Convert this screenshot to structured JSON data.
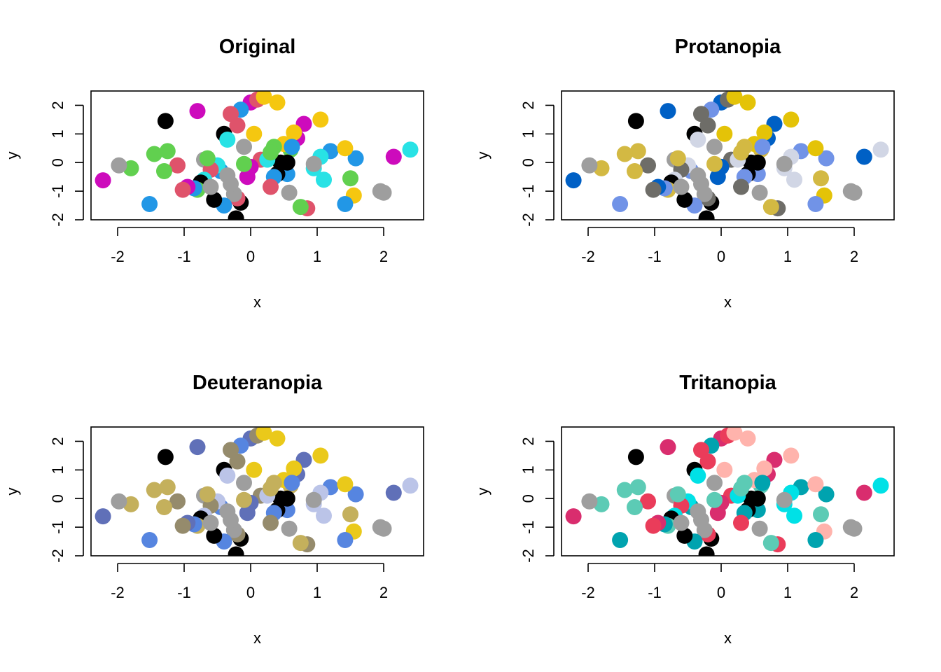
{
  "figure": {
    "background": "#ffffff",
    "layout": "2x2 grid"
  },
  "chart_data": [
    {
      "type": "scatter",
      "title": "Original",
      "xlabel": "x",
      "ylabel": "y",
      "xlim": [
        -2.4,
        2.6
      ],
      "ylim": [
        -2.0,
        2.5
      ],
      "xticks": [
        -2,
        -1,
        0,
        1,
        2
      ],
      "yticks": [
        -2,
        -1,
        0,
        1,
        2
      ],
      "xtick_labels": [
        "-2",
        "-1",
        "0",
        "1",
        "2"
      ],
      "ytick_labels": [
        "-2",
        "-1",
        "0",
        "1",
        "2"
      ],
      "grid": false,
      "marker": "filled circle",
      "palette": [
        "#000000",
        "#df536b",
        "#61d04f",
        "#2297e6",
        "#28e2e5",
        "#cd0bbc",
        "#f5c710",
        "#9e9e9e"
      ],
      "x": [
        -1.28,
        -0.8,
        -0.7,
        -0.4,
        0.0,
        -0.15,
        0.1,
        0.2,
        0.4,
        -0.3,
        -0.2,
        0.05,
        0.8,
        1.05,
        2.4,
        2.15,
        1.58,
        1.55,
        1.42,
        1.5,
        1.2,
        1.05,
        1.1,
        0.95,
        0.85,
        0.75,
        0.7,
        0.65,
        0.6,
        0.55,
        0.5,
        0.45,
        0.4,
        0.35,
        0.35,
        0.3,
        0.15,
        0.0,
        -0.05,
        -0.1,
        -0.15,
        -0.2,
        -0.25,
        -0.3,
        -0.35,
        -0.4,
        -0.45,
        -0.5,
        -0.55,
        -0.6,
        -0.65,
        -0.7,
        -0.75,
        -0.8,
        -0.85,
        -0.95,
        -1.02,
        -1.1,
        -1.25,
        -1.3,
        -1.45,
        -1.52,
        -1.8,
        -1.98,
        -2.22,
        2.0,
        1.95,
        0.58,
        0.25,
        0.95,
        0.3,
        -0.22,
        1.42,
        0.55,
        -0.35,
        -0.1,
        -0.6,
        0.62
      ],
      "y": [
        1.45,
        1.8,
        0.1,
        1.0,
        2.1,
        1.85,
        2.2,
        2.3,
        2.1,
        1.7,
        1.3,
        1.0,
        1.35,
        1.5,
        0.45,
        0.2,
        0.15,
        -1.15,
        -1.45,
        -0.55,
        0.4,
        0.2,
        -0.6,
        -0.2,
        -1.6,
        -1.55,
        0.85,
        1.05,
        0.45,
        -0.4,
        0.65,
        0.0,
        -0.4,
        0.55,
        -0.5,
        -0.85,
        0.1,
        -0.15,
        -0.5,
        -0.05,
        -1.4,
        -1.25,
        -1.1,
        -0.75,
        0.8,
        -1.5,
        -0.3,
        -0.1,
        -1.3,
        -0.25,
        0.15,
        -0.6,
        -0.7,
        -0.95,
        -0.9,
        -0.85,
        -0.95,
        -0.1,
        0.4,
        -0.3,
        0.3,
        -1.45,
        -0.2,
        -0.1,
        -0.62,
        -1.05,
        -1.0,
        -1.05,
        0.1,
        -0.05,
        0.35,
        -1.95,
        0.5,
        0.0,
        -0.45,
        0.55,
        -0.85,
        0.55
      ],
      "colors": [
        "#000000",
        "#cd0bbc",
        "#9e9e9e",
        "#000000",
        "#cd0bbc",
        "#2297e6",
        "#df536b",
        "#f5c710",
        "#f5c710",
        "#df536b",
        "#df536b",
        "#f5c710",
        "#cd0bbc",
        "#f5c710",
        "#28e2e5",
        "#cd0bbc",
        "#2297e6",
        "#f5c710",
        "#2297e6",
        "#61d04f",
        "#2297e6",
        "#28e2e5",
        "#28e2e5",
        "#28e2e5",
        "#df536b",
        "#61d04f",
        "#cd0bbc",
        "#f5c710",
        "#61d04f",
        "#2297e6",
        "#f5c710",
        "#000000",
        "#000000",
        "#61d04f",
        "#2297e6",
        "#df536b",
        "#df536b",
        "#cd0bbc",
        "#cd0bbc",
        "#61d04f",
        "#000000",
        "#df536b",
        "#9e9e9e",
        "#9e9e9e",
        "#28e2e5",
        "#2297e6",
        "#2297e6",
        "#28e2e5",
        "#000000",
        "#df536b",
        "#61d04f",
        "#28e2e5",
        "#000000",
        "#61d04f",
        "#2297e6",
        "#cd0bbc",
        "#df536b",
        "#df536b",
        "#61d04f",
        "#61d04f",
        "#61d04f",
        "#2297e6",
        "#61d04f",
        "#9e9e9e",
        "#cd0bbc",
        "#9e9e9e",
        "#9e9e9e",
        "#9e9e9e",
        "#28e2e5",
        "#9e9e9e",
        "#61d04f",
        "#000000",
        "#f5c710",
        "#000000",
        "#9e9e9e",
        "#9e9e9e",
        "#9e9e9e",
        "#2297e6"
      ]
    },
    {
      "type": "scatter",
      "title": "Protanopia",
      "xlabel": "x",
      "ylabel": "y",
      "xlim": [
        -2.4,
        2.6
      ],
      "ylim": [
        -2.0,
        2.5
      ],
      "xticks": [
        -2,
        -1,
        0,
        1,
        2
      ],
      "yticks": [
        -2,
        -1,
        0,
        1,
        2
      ],
      "xtick_labels": [
        "-2",
        "-1",
        "0",
        "1",
        "2"
      ],
      "ytick_labels": [
        "-2",
        "-1",
        "0",
        "1",
        "2"
      ],
      "grid": false,
      "marker": "filled circle",
      "palette": [
        "#000000",
        "#6e6d68",
        "#d3b943",
        "#7193e7",
        "#d1d6e5",
        "#0060c5",
        "#e4c308",
        "#9e9e9e"
      ],
      "x": [
        -1.28,
        -0.8,
        -0.7,
        -0.4,
        0.0,
        -0.15,
        0.1,
        0.2,
        0.4,
        -0.3,
        -0.2,
        0.05,
        0.8,
        1.05,
        2.4,
        2.15,
        1.58,
        1.55,
        1.42,
        1.5,
        1.2,
        1.05,
        1.1,
        0.95,
        0.85,
        0.75,
        0.7,
        0.65,
        0.6,
        0.55,
        0.5,
        0.45,
        0.4,
        0.35,
        0.35,
        0.3,
        0.15,
        0.0,
        -0.05,
        -0.1,
        -0.15,
        -0.2,
        -0.25,
        -0.3,
        -0.35,
        -0.4,
        -0.45,
        -0.5,
        -0.55,
        -0.6,
        -0.65,
        -0.7,
        -0.75,
        -0.8,
        -0.85,
        -0.95,
        -1.02,
        -1.1,
        -1.25,
        -1.3,
        -1.45,
        -1.52,
        -1.8,
        -1.98,
        -2.22,
        2.0,
        1.95,
        0.58,
        0.25,
        0.95,
        0.3,
        -0.22,
        1.42,
        0.55,
        -0.35,
        -0.1,
        -0.6,
        0.62
      ],
      "y": [
        1.45,
        1.8,
        0.1,
        1.0,
        2.1,
        1.85,
        2.2,
        2.3,
        2.1,
        1.7,
        1.3,
        1.0,
        1.35,
        1.5,
        0.45,
        0.2,
        0.15,
        -1.15,
        -1.45,
        -0.55,
        0.4,
        0.2,
        -0.6,
        -0.2,
        -1.6,
        -1.55,
        0.85,
        1.05,
        0.45,
        -0.4,
        0.65,
        0.0,
        -0.4,
        0.55,
        -0.5,
        -0.85,
        0.1,
        -0.15,
        -0.5,
        -0.05,
        -1.4,
        -1.25,
        -1.1,
        -0.75,
        0.8,
        -1.5,
        -0.3,
        -0.1,
        -1.3,
        -0.25,
        0.15,
        -0.6,
        -0.7,
        -0.95,
        -0.9,
        -0.85,
        -0.95,
        -0.1,
        0.4,
        -0.3,
        0.3,
        -1.45,
        -0.2,
        -0.1,
        -0.62,
        -1.05,
        -1.0,
        -1.05,
        0.1,
        -0.05,
        0.35,
        -1.95,
        0.5,
        0.0,
        -0.45,
        0.55,
        -0.85,
        0.55
      ],
      "colors": [
        "#000000",
        "#0060c5",
        "#9e9e9e",
        "#000000",
        "#0060c5",
        "#7193e7",
        "#6e6d68",
        "#e4c308",
        "#e4c308",
        "#6e6d68",
        "#6e6d68",
        "#e4c308",
        "#0060c5",
        "#e4c308",
        "#d1d6e5",
        "#0060c5",
        "#7193e7",
        "#e4c308",
        "#7193e7",
        "#d3b943",
        "#7193e7",
        "#d1d6e5",
        "#d1d6e5",
        "#d1d6e5",
        "#6e6d68",
        "#d3b943",
        "#0060c5",
        "#e4c308",
        "#d3b943",
        "#7193e7",
        "#e4c308",
        "#000000",
        "#000000",
        "#d3b943",
        "#7193e7",
        "#6e6d68",
        "#6e6d68",
        "#0060c5",
        "#0060c5",
        "#d3b943",
        "#000000",
        "#6e6d68",
        "#9e9e9e",
        "#9e9e9e",
        "#d1d6e5",
        "#7193e7",
        "#7193e7",
        "#d1d6e5",
        "#000000",
        "#6e6d68",
        "#d3b943",
        "#d1d6e5",
        "#000000",
        "#d3b943",
        "#7193e7",
        "#0060c5",
        "#6e6d68",
        "#6e6d68",
        "#d3b943",
        "#d3b943",
        "#d3b943",
        "#7193e7",
        "#d3b943",
        "#9e9e9e",
        "#0060c5",
        "#9e9e9e",
        "#9e9e9e",
        "#9e9e9e",
        "#d1d6e5",
        "#9e9e9e",
        "#d3b943",
        "#000000",
        "#e4c308",
        "#000000",
        "#9e9e9e",
        "#9e9e9e",
        "#9e9e9e",
        "#7193e7"
      ]
    },
    {
      "type": "scatter",
      "title": "Deuteranopia",
      "xlabel": "x",
      "ylabel": "y",
      "xlim": [
        -2.4,
        2.6
      ],
      "ylim": [
        -2.0,
        2.5
      ],
      "xticks": [
        -2,
        -1,
        0,
        1,
        2
      ],
      "yticks": [
        -2,
        -1,
        0,
        1,
        2
      ],
      "xtick_labels": [
        "-2",
        "-1",
        "0",
        "1",
        "2"
      ],
      "ytick_labels": [
        "-2",
        "-1",
        "0",
        "1",
        "2"
      ],
      "grid": false,
      "marker": "filled circle",
      "palette": [
        "#000000",
        "#958b6c",
        "#c4b05c",
        "#5685e0",
        "#bbc4e8",
        "#6070b8",
        "#eac91a",
        "#9e9e9e"
      ],
      "x": [
        -1.28,
        -0.8,
        -0.7,
        -0.4,
        0.0,
        -0.15,
        0.1,
        0.2,
        0.4,
        -0.3,
        -0.2,
        0.05,
        0.8,
        1.05,
        2.4,
        2.15,
        1.58,
        1.55,
        1.42,
        1.5,
        1.2,
        1.05,
        1.1,
        0.95,
        0.85,
        0.75,
        0.7,
        0.65,
        0.6,
        0.55,
        0.5,
        0.45,
        0.4,
        0.35,
        0.35,
        0.3,
        0.15,
        0.0,
        -0.05,
        -0.1,
        -0.15,
        -0.2,
        -0.25,
        -0.3,
        -0.35,
        -0.4,
        -0.45,
        -0.5,
        -0.55,
        -0.6,
        -0.65,
        -0.7,
        -0.75,
        -0.8,
        -0.85,
        -0.95,
        -1.02,
        -1.1,
        -1.25,
        -1.3,
        -1.45,
        -1.52,
        -1.8,
        -1.98,
        -2.22,
        2.0,
        1.95,
        0.58,
        0.25,
        0.95,
        0.3,
        -0.22,
        1.42,
        0.55,
        -0.35,
        -0.1,
        -0.6,
        0.62
      ],
      "y": [
        1.45,
        1.8,
        0.1,
        1.0,
        2.1,
        1.85,
        2.2,
        2.3,
        2.1,
        1.7,
        1.3,
        1.0,
        1.35,
        1.5,
        0.45,
        0.2,
        0.15,
        -1.15,
        -1.45,
        -0.55,
        0.4,
        0.2,
        -0.6,
        -0.2,
        -1.6,
        -1.55,
        0.85,
        1.05,
        0.45,
        -0.4,
        0.65,
        0.0,
        -0.4,
        0.55,
        -0.5,
        -0.85,
        0.1,
        -0.15,
        -0.5,
        -0.05,
        -1.4,
        -1.25,
        -1.1,
        -0.75,
        0.8,
        -1.5,
        -0.3,
        -0.1,
        -1.3,
        -0.25,
        0.15,
        -0.6,
        -0.7,
        -0.95,
        -0.9,
        -0.85,
        -0.95,
        -0.1,
        0.4,
        -0.3,
        0.3,
        -1.45,
        -0.2,
        -0.1,
        -0.62,
        -1.05,
        -1.0,
        -1.05,
        0.1,
        -0.05,
        0.35,
        -1.95,
        0.5,
        0.0,
        -0.45,
        0.55,
        -0.85,
        0.55
      ],
      "colors": [
        "#000000",
        "#6070b8",
        "#9e9e9e",
        "#000000",
        "#6070b8",
        "#5685e0",
        "#958b6c",
        "#eac91a",
        "#eac91a",
        "#958b6c",
        "#958b6c",
        "#eac91a",
        "#6070b8",
        "#eac91a",
        "#bbc4e8",
        "#6070b8",
        "#5685e0",
        "#eac91a",
        "#5685e0",
        "#c4b05c",
        "#5685e0",
        "#bbc4e8",
        "#bbc4e8",
        "#bbc4e8",
        "#958b6c",
        "#c4b05c",
        "#6070b8",
        "#eac91a",
        "#c4b05c",
        "#5685e0",
        "#eac91a",
        "#000000",
        "#000000",
        "#c4b05c",
        "#5685e0",
        "#958b6c",
        "#958b6c",
        "#6070b8",
        "#6070b8",
        "#c4b05c",
        "#000000",
        "#958b6c",
        "#9e9e9e",
        "#9e9e9e",
        "#bbc4e8",
        "#5685e0",
        "#5685e0",
        "#bbc4e8",
        "#000000",
        "#958b6c",
        "#c4b05c",
        "#bbc4e8",
        "#000000",
        "#c4b05c",
        "#5685e0",
        "#6070b8",
        "#958b6c",
        "#958b6c",
        "#c4b05c",
        "#c4b05c",
        "#c4b05c",
        "#5685e0",
        "#c4b05c",
        "#9e9e9e",
        "#6070b8",
        "#9e9e9e",
        "#9e9e9e",
        "#9e9e9e",
        "#bbc4e8",
        "#9e9e9e",
        "#c4b05c",
        "#000000",
        "#eac91a",
        "#000000",
        "#9e9e9e",
        "#9e9e9e",
        "#9e9e9e",
        "#5685e0"
      ]
    },
    {
      "type": "scatter",
      "title": "Tritanopia",
      "xlabel": "x",
      "ylabel": "y",
      "xlim": [
        -2.4,
        2.6
      ],
      "ylim": [
        -2.0,
        2.5
      ],
      "xticks": [
        -2,
        -1,
        0,
        1,
        2
      ],
      "yticks": [
        -2,
        -1,
        0,
        1,
        2
      ],
      "xtick_labels": [
        "-2",
        "-1",
        "0",
        "1",
        "2"
      ],
      "ytick_labels": [
        "-2",
        "-1",
        "0",
        "1",
        "2"
      ],
      "grid": false,
      "marker": "filled circle",
      "palette": [
        "#000000",
        "#ea3c5a",
        "#5ccbb5",
        "#00a3af",
        "#00e1e6",
        "#d92d6e",
        "#ffb3ac",
        "#9e9e9e"
      ],
      "x": [
        -1.28,
        -0.8,
        -0.7,
        -0.4,
        0.0,
        -0.15,
        0.1,
        0.2,
        0.4,
        -0.3,
        -0.2,
        0.05,
        0.8,
        1.05,
        2.4,
        2.15,
        1.58,
        1.55,
        1.42,
        1.5,
        1.2,
        1.05,
        1.1,
        0.95,
        0.85,
        0.75,
        0.7,
        0.65,
        0.6,
        0.55,
        0.5,
        0.45,
        0.4,
        0.35,
        0.35,
        0.3,
        0.15,
        0.0,
        -0.05,
        -0.1,
        -0.15,
        -0.2,
        -0.25,
        -0.3,
        -0.35,
        -0.4,
        -0.45,
        -0.5,
        -0.55,
        -0.6,
        -0.65,
        -0.7,
        -0.75,
        -0.8,
        -0.85,
        -0.95,
        -1.02,
        -1.1,
        -1.25,
        -1.3,
        -1.45,
        -1.52,
        -1.8,
        -1.98,
        -2.22,
        2.0,
        1.95,
        0.58,
        0.25,
        0.95,
        0.3,
        -0.22,
        1.42,
        0.55,
        -0.35,
        -0.1,
        -0.6,
        0.62
      ],
      "y": [
        1.45,
        1.8,
        0.1,
        1.0,
        2.1,
        1.85,
        2.2,
        2.3,
        2.1,
        1.7,
        1.3,
        1.0,
        1.35,
        1.5,
        0.45,
        0.2,
        0.15,
        -1.15,
        -1.45,
        -0.55,
        0.4,
        0.2,
        -0.6,
        -0.2,
        -1.6,
        -1.55,
        0.85,
        1.05,
        0.45,
        -0.4,
        0.65,
        0.0,
        -0.4,
        0.55,
        -0.5,
        -0.85,
        0.1,
        -0.15,
        -0.5,
        -0.05,
        -1.4,
        -1.25,
        -1.1,
        -0.75,
        0.8,
        -1.5,
        -0.3,
        -0.1,
        -1.3,
        -0.25,
        0.15,
        -0.6,
        -0.7,
        -0.95,
        -0.9,
        -0.85,
        -0.95,
        -0.1,
        0.4,
        -0.3,
        0.3,
        -1.45,
        -0.2,
        -0.1,
        -0.62,
        -1.05,
        -1.0,
        -1.05,
        0.1,
        -0.05,
        0.35,
        -1.95,
        0.5,
        0.0,
        -0.45,
        0.55,
        -0.85,
        0.55
      ],
      "colors": [
        "#000000",
        "#d92d6e",
        "#9e9e9e",
        "#000000",
        "#d92d6e",
        "#00a3af",
        "#ea3c5a",
        "#ffb3ac",
        "#ffb3ac",
        "#ea3c5a",
        "#ea3c5a",
        "#ffb3ac",
        "#d92d6e",
        "#ffb3ac",
        "#00e1e6",
        "#d92d6e",
        "#00a3af",
        "#ffb3ac",
        "#00a3af",
        "#5ccbb5",
        "#00a3af",
        "#00e1e6",
        "#00e1e6",
        "#00e1e6",
        "#ea3c5a",
        "#5ccbb5",
        "#d92d6e",
        "#ffb3ac",
        "#5ccbb5",
        "#00a3af",
        "#ffb3ac",
        "#000000",
        "#000000",
        "#5ccbb5",
        "#00a3af",
        "#ea3c5a",
        "#ea3c5a",
        "#d92d6e",
        "#d92d6e",
        "#5ccbb5",
        "#000000",
        "#ea3c5a",
        "#9e9e9e",
        "#9e9e9e",
        "#00e1e6",
        "#00a3af",
        "#00a3af",
        "#00e1e6",
        "#000000",
        "#ea3c5a",
        "#5ccbb5",
        "#00e1e6",
        "#000000",
        "#5ccbb5",
        "#00a3af",
        "#d92d6e",
        "#ea3c5a",
        "#ea3c5a",
        "#5ccbb5",
        "#5ccbb5",
        "#5ccbb5",
        "#00a3af",
        "#5ccbb5",
        "#9e9e9e",
        "#d92d6e",
        "#9e9e9e",
        "#9e9e9e",
        "#9e9e9e",
        "#00e1e6",
        "#9e9e9e",
        "#5ccbb5",
        "#000000",
        "#ffb3ac",
        "#000000",
        "#9e9e9e",
        "#9e9e9e",
        "#9e9e9e",
        "#00a3af"
      ]
    }
  ]
}
